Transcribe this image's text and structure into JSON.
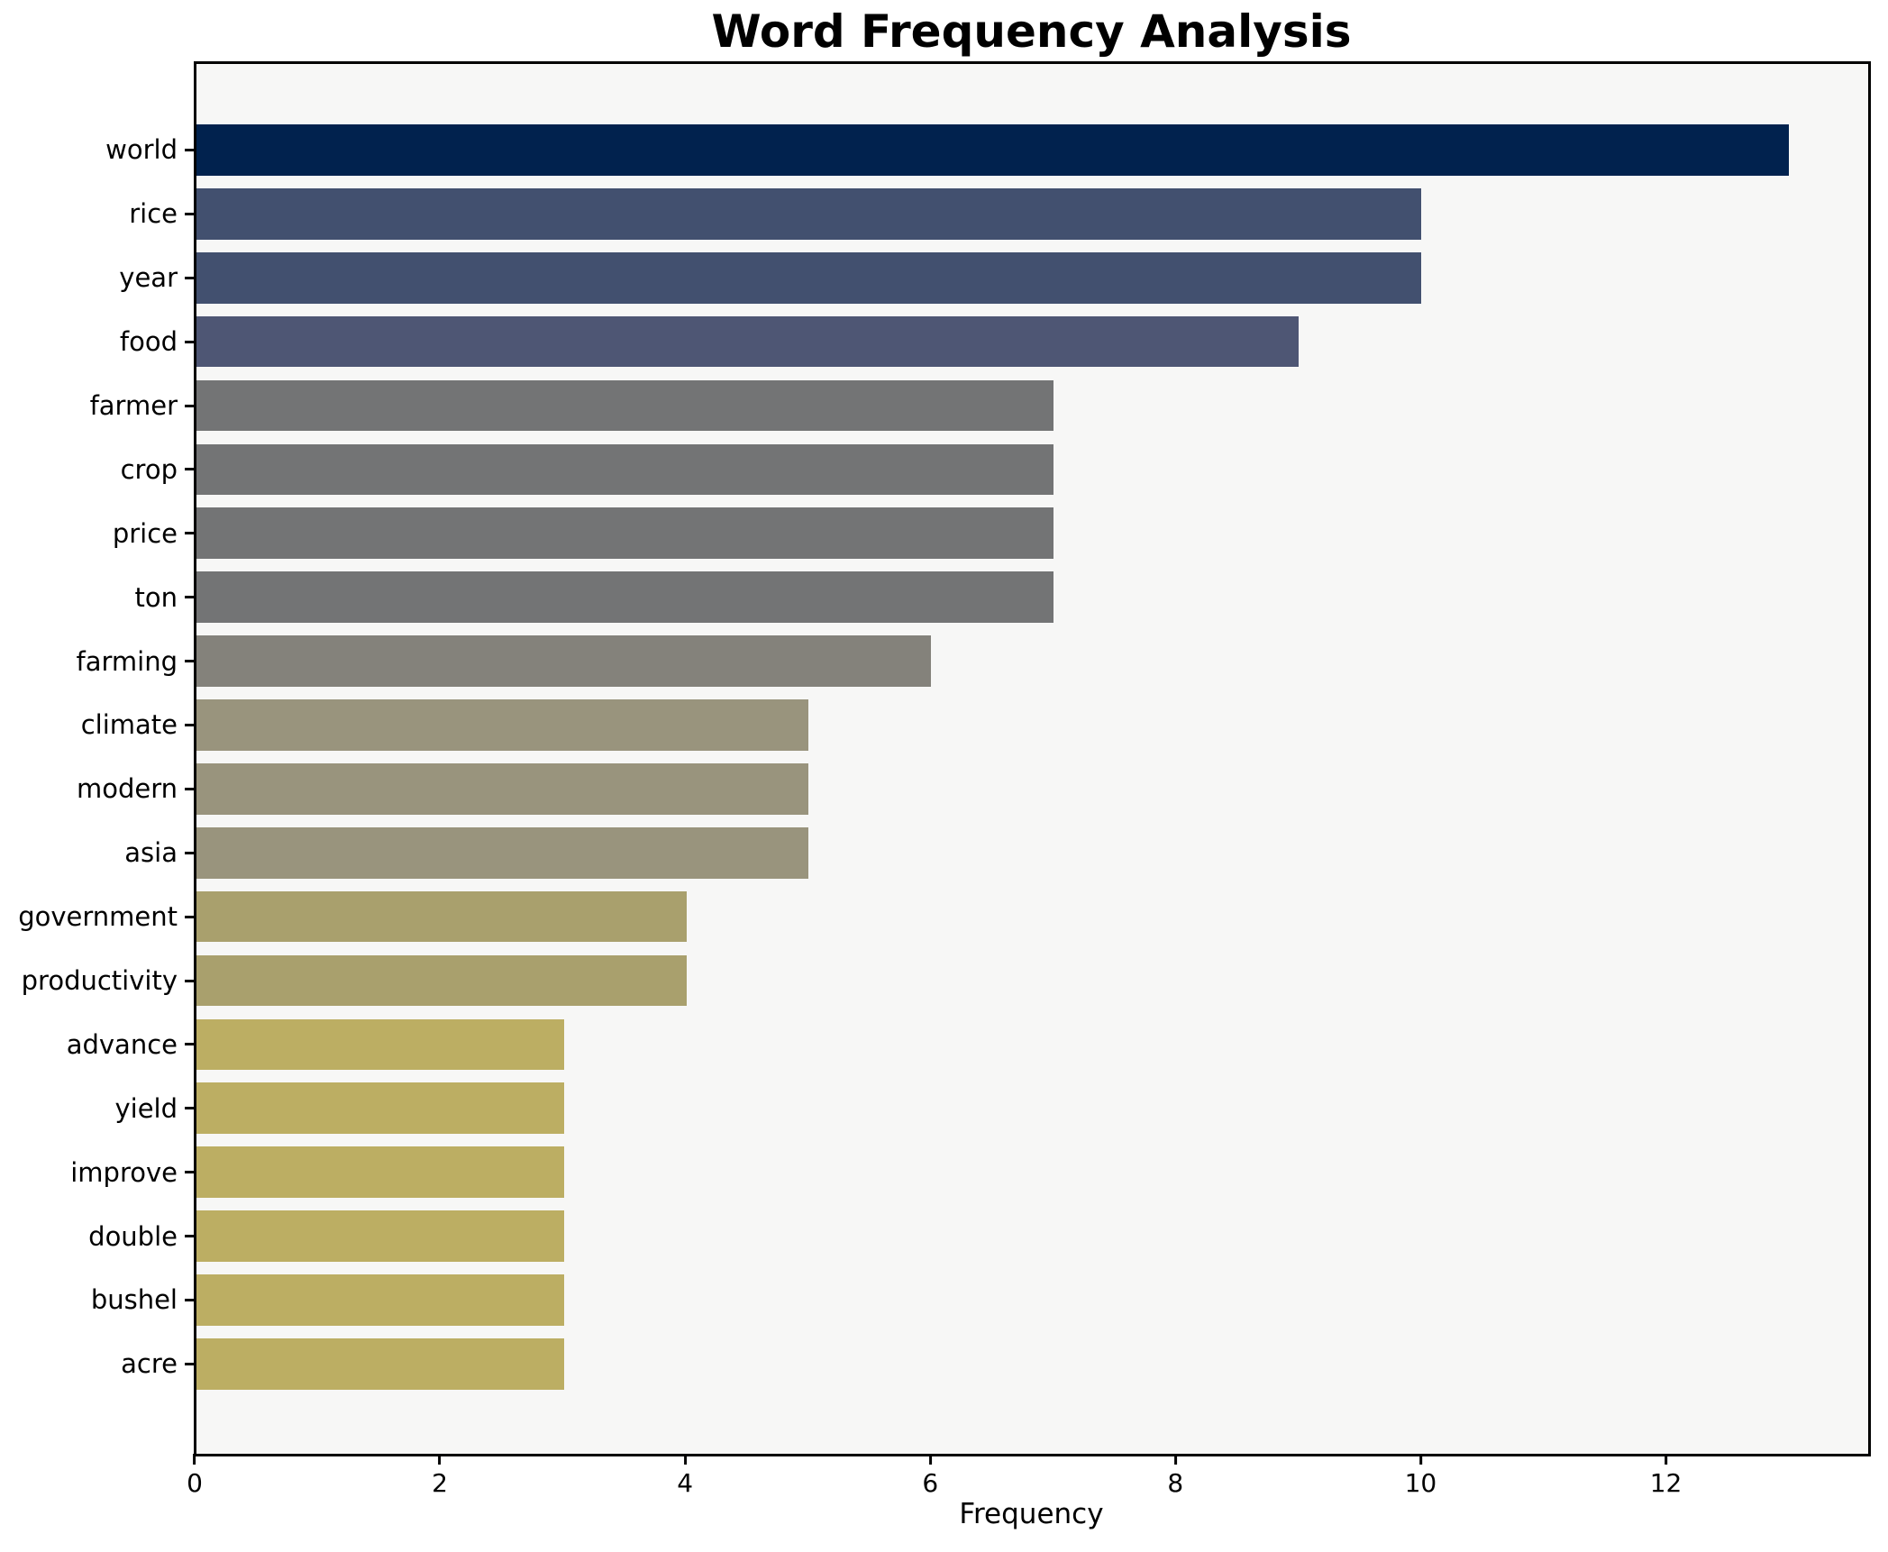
{
  "chart_data": {
    "type": "bar",
    "orientation": "horizontal",
    "title": "Word Frequency Analysis",
    "xlabel": "Frequency",
    "ylabel": "",
    "xlim": [
      0,
      13.65
    ],
    "x_ticks": [
      0,
      2,
      4,
      6,
      8,
      10,
      12
    ],
    "grid": false,
    "legend": null,
    "plot_background": "#f7f7f6",
    "figure_background": "#ffffff",
    "axis_color": "#000000",
    "categories": [
      "world",
      "rice",
      "year",
      "food",
      "farmer",
      "crop",
      "price",
      "ton",
      "farming",
      "climate",
      "modern",
      "asia",
      "government",
      "productivity",
      "advance",
      "yield",
      "improve",
      "double",
      "bushel",
      "acre"
    ],
    "values": [
      13,
      10,
      10,
      9,
      7,
      7,
      7,
      7,
      6,
      5,
      5,
      5,
      4,
      4,
      3,
      3,
      3,
      3,
      3,
      3
    ],
    "bar_colors": [
      "#01224e",
      "#42506f",
      "#42506f",
      "#4e5674",
      "#737475",
      "#737475",
      "#737475",
      "#737475",
      "#84827b",
      "#99947d",
      "#99947d",
      "#99947d",
      "#a9a06d",
      "#a9a06d",
      "#bcae63",
      "#bcae63",
      "#bcae63",
      "#bcae63",
      "#bcae63",
      "#bcae63"
    ]
  }
}
